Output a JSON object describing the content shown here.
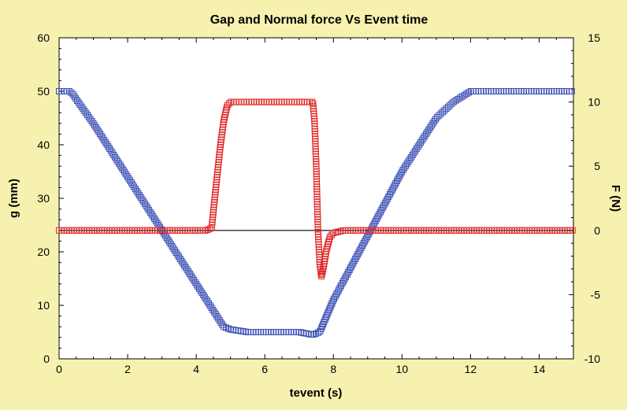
{
  "chart_data": {
    "type": "scatter",
    "title": "Gap and Normal force Vs Event time",
    "xlabel": "tevent (s)",
    "ylabel_left": "g (mm)",
    "ylabel_right": "F (N)",
    "xlim": [
      0,
      15
    ],
    "ylim_left": [
      0,
      60
    ],
    "ylim_right": [
      -10,
      15
    ],
    "x_ticks": [
      "0",
      "2",
      "4",
      "6",
      "8",
      "10",
      "12",
      "14"
    ],
    "y_left_ticks": [
      "0",
      "10",
      "20",
      "30",
      "40",
      "50",
      "60"
    ],
    "y_right_ticks": [
      "-10",
      "-5",
      "0",
      "5",
      "10",
      "15"
    ],
    "grid": false,
    "reference_line": {
      "axis": "right",
      "y": 0
    },
    "colors": {
      "gap": "#3a4fb4",
      "force": "#e02a2a",
      "background": "#f7f1b0",
      "plot": "#ffffff"
    },
    "series": [
      {
        "axis": "left",
        "marker": "square",
        "x": [
          0,
          0.1,
          0.2,
          0.3,
          0.4,
          0.5,
          1.0,
          1.5,
          2.0,
          2.5,
          3.0,
          3.5,
          4.0,
          4.5,
          4.8,
          5.0,
          5.5,
          6.0,
          6.5,
          7.0,
          7.4,
          7.6,
          7.8,
          8.0,
          8.5,
          9.0,
          9.5,
          10.0,
          10.5,
          11.0,
          11.5,
          12.0,
          12.5,
          13.0,
          13.5,
          14.0,
          14.5,
          15.0
        ],
        "values": [
          50,
          50,
          50,
          50,
          49.5,
          48.5,
          44,
          39,
          34,
          29,
          24,
          19,
          14,
          9,
          6,
          5.5,
          5,
          5,
          5,
          5,
          4.5,
          5,
          8,
          11,
          17,
          23,
          29,
          35,
          40,
          45,
          48,
          50,
          50,
          50,
          50,
          50,
          50,
          50
        ]
      },
      {
        "axis": "right",
        "marker": "square",
        "x": [
          0,
          0.5,
          1.0,
          1.5,
          2.0,
          2.5,
          3.0,
          3.5,
          4.0,
          4.3,
          4.45,
          4.5,
          4.6,
          4.7,
          4.8,
          4.9,
          5.0,
          5.1,
          5.2,
          5.5,
          6.0,
          6.5,
          7.0,
          7.4,
          7.45,
          7.5,
          7.55,
          7.6,
          7.65,
          7.7,
          7.8,
          7.9,
          8.0,
          8.3,
          8.6,
          9.0,
          9.5,
          10.0,
          10.5,
          11.0,
          11.5,
          12.0,
          12.5,
          13.0,
          13.5,
          14.0,
          14.5,
          15.0
        ],
        "values": [
          0,
          0,
          0,
          0,
          0,
          0,
          0,
          0,
          0,
          0,
          0.2,
          1.5,
          4,
          6.5,
          8.5,
          9.7,
          10,
          10,
          10,
          10,
          10,
          10,
          10,
          10,
          8.5,
          5,
          0,
          -2.5,
          -3.6,
          -3,
          -1.5,
          -0.5,
          -0.2,
          0,
          0,
          0,
          0,
          0,
          0,
          0,
          0,
          0,
          0,
          0,
          0,
          0,
          0,
          0
        ]
      }
    ]
  }
}
